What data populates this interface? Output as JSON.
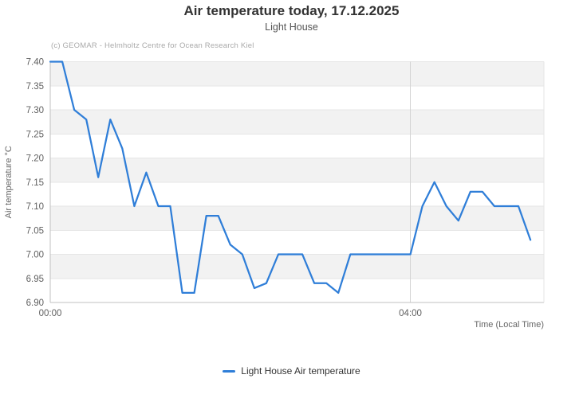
{
  "title": "Air temperature today, 17.12.2025",
  "subtitle": "Light House",
  "credits": "(c) GEOMAR - Helmholtz Centre for Ocean Research Kiel",
  "legend": {
    "label": "Light House Air temperature"
  },
  "colors": {
    "line": "#2f7ed8",
    "band": "#f2f2f2",
    "grid": "#e6e6e6",
    "vgrid": "#d4d4d4",
    "axis_line": "#c0c0c0",
    "tick_label": "#606060",
    "axis_title": "#666666"
  },
  "chart_data": {
    "type": "line",
    "title": "Air temperature today, 17.12.2025",
    "subtitle": "Light House",
    "xlabel": "Time (Local Time)",
    "ylabel": "Air temperature °C",
    "legend_position": "bottom",
    "grid": true,
    "alternating_bands": true,
    "ylim": [
      6.9,
      7.4
    ],
    "ytick_step": 0.05,
    "x_axis_max_minutes": 329,
    "xticks": [
      {
        "label": "00:00",
        "minutes": 0
      },
      {
        "label": "04:00",
        "minutes": 240
      }
    ],
    "series": [
      {
        "name": "Light House Air temperature",
        "times": [
          "00:00",
          "00:08",
          "00:16",
          "00:24",
          "00:32",
          "00:40",
          "00:48",
          "00:56",
          "01:04",
          "01:12",
          "01:20",
          "01:28",
          "01:36",
          "01:44",
          "01:52",
          "02:00",
          "02:08",
          "02:16",
          "02:24",
          "02:32",
          "02:40",
          "02:48",
          "02:56",
          "03:04",
          "03:12",
          "03:20",
          "03:28",
          "03:36",
          "03:44",
          "03:52",
          "04:00",
          "04:08",
          "04:16",
          "04:24",
          "04:32",
          "04:40",
          "04:48",
          "04:56",
          "05:04",
          "05:12",
          "05:20"
        ],
        "x_minutes": [
          0,
          8,
          16,
          24,
          32,
          40,
          48,
          56,
          64,
          72,
          80,
          88,
          96,
          104,
          112,
          120,
          128,
          136,
          144,
          152,
          160,
          168,
          176,
          184,
          192,
          200,
          208,
          216,
          224,
          232,
          240,
          248,
          256,
          264,
          272,
          280,
          288,
          296,
          304,
          312,
          320
        ],
        "values": [
          7.4,
          7.4,
          7.3,
          7.28,
          7.16,
          7.28,
          7.22,
          7.1,
          7.17,
          7.1,
          7.1,
          6.92,
          6.92,
          7.08,
          7.08,
          7.02,
          7.0,
          6.93,
          6.94,
          7.0,
          7.0,
          7.0,
          6.94,
          6.94,
          6.92,
          7.0,
          7.0,
          7.0,
          7.0,
          7.0,
          7.0,
          7.1,
          7.15,
          7.1,
          7.07,
          7.13,
          7.13,
          7.1,
          7.1,
          7.1,
          7.03
        ]
      }
    ]
  }
}
